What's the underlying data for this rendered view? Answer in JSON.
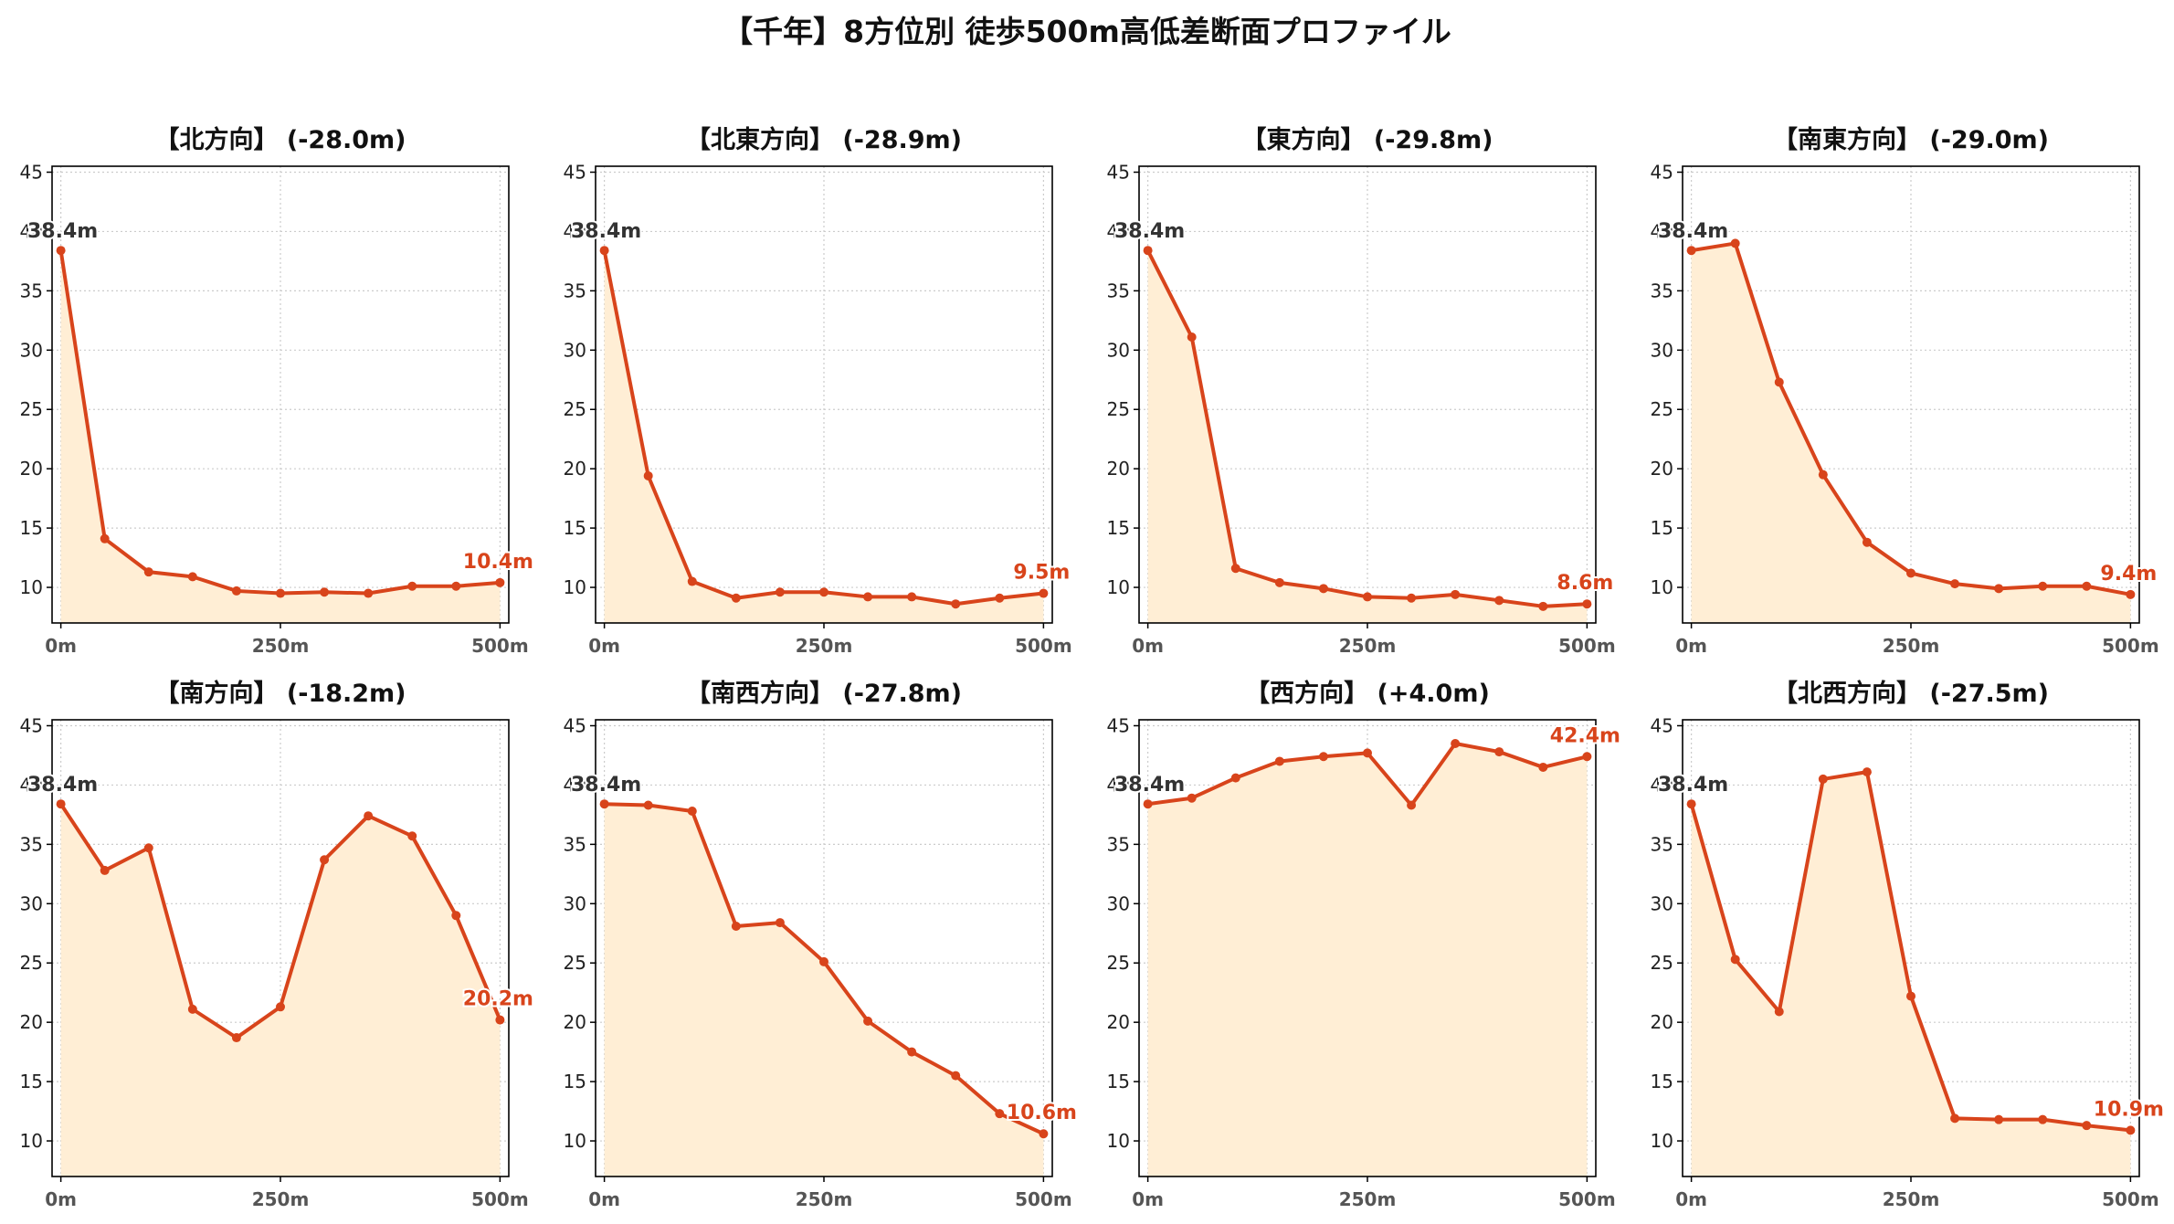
{
  "figure_title": "【千年】8方位別 徒歩500m高低差断面プロファイル",
  "chart_data": [
    {
      "type": "line",
      "title": "【北方向】 (-28.0m)",
      "x": [
        0,
        50,
        100,
        150,
        200,
        250,
        300,
        350,
        400,
        450,
        500
      ],
      "values": [
        38.4,
        14.1,
        11.3,
        10.9,
        9.7,
        9.5,
        9.6,
        9.5,
        10.1,
        10.1,
        10.4
      ],
      "start_label": "38.4m",
      "end_label": "10.4m",
      "xticks": [
        "0m",
        "250m",
        "500m"
      ],
      "yticks": [
        "10",
        "15",
        "20",
        "25",
        "30",
        "35",
        "40",
        "45"
      ],
      "ylim": [
        7,
        45.5
      ],
      "xlim": [
        -10,
        510
      ],
      "grid": true
    },
    {
      "type": "line",
      "title": "【北東方向】 (-28.9m)",
      "x": [
        0,
        50,
        100,
        150,
        200,
        250,
        300,
        350,
        400,
        450,
        500
      ],
      "values": [
        38.4,
        19.4,
        10.5,
        9.1,
        9.6,
        9.6,
        9.2,
        9.2,
        8.6,
        9.1,
        9.5
      ],
      "start_label": "38.4m",
      "end_label": "9.5m",
      "xticks": [
        "0m",
        "250m",
        "500m"
      ],
      "yticks": [
        "10",
        "15",
        "20",
        "25",
        "30",
        "35",
        "40",
        "45"
      ],
      "ylim": [
        7,
        45.5
      ],
      "xlim": [
        -10,
        510
      ],
      "grid": true
    },
    {
      "type": "line",
      "title": "【東方向】 (-29.8m)",
      "x": [
        0,
        50,
        100,
        150,
        200,
        250,
        300,
        350,
        400,
        450,
        500
      ],
      "values": [
        38.4,
        31.1,
        11.6,
        10.4,
        9.9,
        9.2,
        9.1,
        9.4,
        8.9,
        8.4,
        8.6
      ],
      "start_label": "38.4m",
      "end_label": "8.6m",
      "xticks": [
        "0m",
        "250m",
        "500m"
      ],
      "yticks": [
        "10",
        "15",
        "20",
        "25",
        "30",
        "35",
        "40",
        "45"
      ],
      "ylim": [
        7,
        45.5
      ],
      "xlim": [
        -10,
        510
      ],
      "grid": true
    },
    {
      "type": "line",
      "title": "【南東方向】 (-29.0m)",
      "x": [
        0,
        50,
        100,
        150,
        200,
        250,
        300,
        350,
        400,
        450,
        500
      ],
      "values": [
        38.4,
        39.0,
        27.3,
        19.5,
        13.8,
        11.2,
        10.3,
        9.9,
        10.1,
        10.1,
        9.4
      ],
      "start_label": "38.4m",
      "end_label": "9.4m",
      "xticks": [
        "0m",
        "250m",
        "500m"
      ],
      "yticks": [
        "10",
        "15",
        "20",
        "25",
        "30",
        "35",
        "40",
        "45"
      ],
      "ylim": [
        7,
        45.5
      ],
      "xlim": [
        -10,
        510
      ],
      "grid": true
    },
    {
      "type": "line",
      "title": "【南方向】 (-18.2m)",
      "x": [
        0,
        50,
        100,
        150,
        200,
        250,
        300,
        350,
        400,
        450,
        500
      ],
      "values": [
        38.4,
        32.8,
        34.7,
        21.1,
        18.7,
        21.3,
        33.7,
        37.4,
        35.7,
        29.0,
        20.2
      ],
      "start_label": "38.4m",
      "end_label": "20.2m",
      "xticks": [
        "0m",
        "250m",
        "500m"
      ],
      "yticks": [
        "10",
        "15",
        "20",
        "25",
        "30",
        "35",
        "40",
        "45"
      ],
      "ylim": [
        7,
        45.5
      ],
      "xlim": [
        -10,
        510
      ],
      "grid": true
    },
    {
      "type": "line",
      "title": "【南西方向】 (-27.8m)",
      "x": [
        0,
        50,
        100,
        150,
        200,
        250,
        300,
        350,
        400,
        450,
        500
      ],
      "values": [
        38.4,
        38.3,
        37.8,
        28.1,
        28.4,
        25.1,
        20.1,
        17.5,
        15.5,
        12.3,
        10.6
      ],
      "start_label": "38.4m",
      "end_label": "10.6m",
      "xticks": [
        "0m",
        "250m",
        "500m"
      ],
      "yticks": [
        "10",
        "15",
        "20",
        "25",
        "30",
        "35",
        "40",
        "45"
      ],
      "ylim": [
        7,
        45.5
      ],
      "xlim": [
        -10,
        510
      ],
      "grid": true
    },
    {
      "type": "line",
      "title": "【西方向】 (+4.0m)",
      "x": [
        0,
        50,
        100,
        150,
        200,
        250,
        300,
        350,
        400,
        450,
        500
      ],
      "values": [
        38.4,
        38.9,
        40.6,
        42.0,
        42.4,
        42.7,
        38.3,
        43.5,
        42.8,
        41.5,
        42.4
      ],
      "start_label": "38.4m",
      "end_label": "42.4m",
      "xticks": [
        "0m",
        "250m",
        "500m"
      ],
      "yticks": [
        "10",
        "15",
        "20",
        "25",
        "30",
        "35",
        "40",
        "45"
      ],
      "ylim": [
        7,
        45.5
      ],
      "xlim": [
        -10,
        510
      ],
      "grid": true
    },
    {
      "type": "line",
      "title": "【北西方向】 (-27.5m)",
      "x": [
        0,
        50,
        100,
        150,
        200,
        250,
        300,
        350,
        400,
        450,
        500
      ],
      "values": [
        38.4,
        25.3,
        20.9,
        40.5,
        41.1,
        22.2,
        11.9,
        11.8,
        11.8,
        11.3,
        10.9
      ],
      "start_label": "38.4m",
      "end_label": "10.9m",
      "xticks": [
        "0m",
        "250m",
        "500m"
      ],
      "yticks": [
        "10",
        "15",
        "20",
        "25",
        "30",
        "35",
        "40",
        "45"
      ],
      "ylim": [
        7,
        45.5
      ],
      "xlim": [
        -10,
        510
      ],
      "grid": true
    }
  ],
  "colors": {
    "line": "#D8441B",
    "fill": "#FFEED5",
    "start_label": "#333333",
    "end_label": "#D8441B",
    "grid": "#CCCCCC",
    "axis": "#000000"
  }
}
